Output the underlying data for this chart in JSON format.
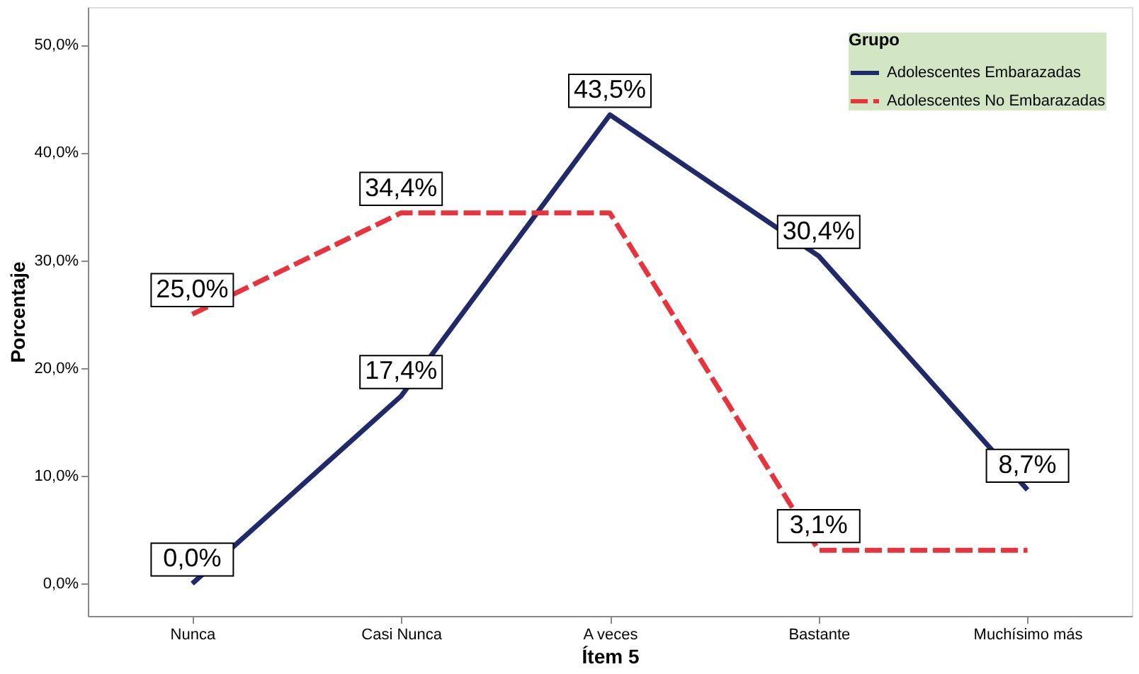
{
  "chart_data": {
    "type": "line",
    "xlabel": "Ítem 5",
    "ylabel": "Porcentaje",
    "legend_title": "Grupo",
    "legend": "top right",
    "grid": false,
    "marker": "none",
    "categories": [
      "Nunca",
      "Casi Nunca",
      "A veces",
      "Bastante",
      "Muchísimo más"
    ],
    "ylim": [
      -3,
      53.5
    ],
    "yticks": [
      {
        "value": 0,
        "label": "0,0%"
      },
      {
        "value": 10,
        "label": "10,0%"
      },
      {
        "value": 20,
        "label": "20,0%"
      },
      {
        "value": 30,
        "label": "30,0%"
      },
      {
        "value": 40,
        "label": "40,0%"
      },
      {
        "value": 50,
        "label": "50,0%"
      }
    ],
    "series": [
      {
        "name": "Adolescentes Embarazadas",
        "color": "#1f2a6b",
        "line_style": "solid",
        "values": [
          0.0,
          17.4,
          43.5,
          30.4,
          8.7
        ],
        "value_labels": [
          "0,0%",
          "17,4%",
          "43,5%",
          "30,4%",
          "8,7%"
        ]
      },
      {
        "name": "Adolescentes No Embarazadas",
        "color": "#e8323c",
        "line_style": "dashed",
        "values": [
          25.0,
          34.4,
          34.4,
          3.1,
          3.1
        ],
        "value_labels": [
          "25,0%",
          "34,4%",
          null,
          "3,1%",
          null
        ]
      }
    ]
  }
}
